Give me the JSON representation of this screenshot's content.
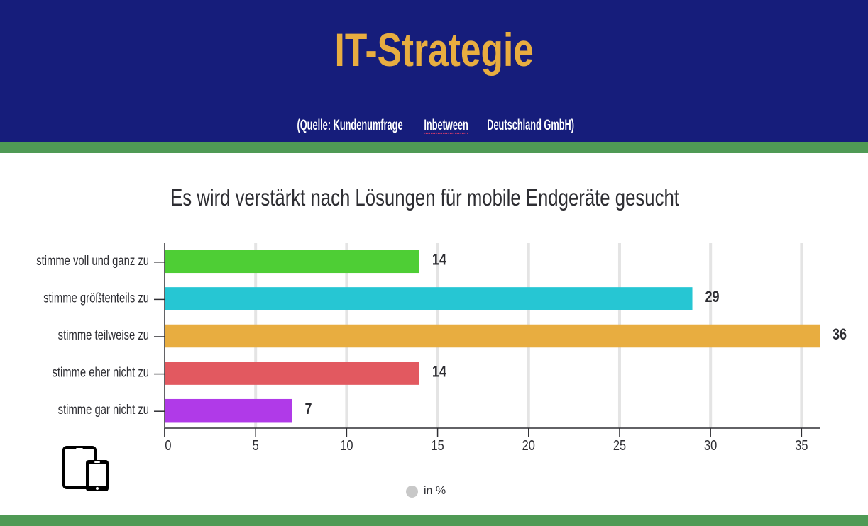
{
  "header": {
    "title": "IT-Strategie",
    "subtitle_pre": "(Quelle: Kundenumfrage ",
    "subtitle_mid": "Inbetween",
    "subtitle_post": " Deutschland GmbH)"
  },
  "colors": {
    "header_bg": "#161d7b",
    "title": "#e8ad40",
    "band": "#4f9a55"
  },
  "icon": "tablet-and-phone-icon",
  "chart_data": {
    "type": "bar",
    "orientation": "horizontal",
    "title": "Es wird verstärkt nach Lösungen für mobile Endgeräte gesucht",
    "xlabel": "",
    "ylabel": "",
    "categories": [
      "stimme voll und ganz zu",
      "stimme größtenteils zu",
      "stimme teilweise zu",
      "stimme eher nicht zu",
      "stimme gar nicht zu"
    ],
    "values": [
      14,
      29,
      36,
      14,
      7
    ],
    "value_labels": [
      "14",
      "29",
      "36",
      "14",
      "7"
    ],
    "bar_colors": [
      "#4ece35",
      "#26c6d3",
      "#e8ad40",
      "#e25960",
      "#b03ae8"
    ],
    "xlim": [
      0,
      36
    ],
    "xticks": [
      0,
      5,
      10,
      15,
      20,
      25,
      30,
      35
    ],
    "xtick_labels": [
      "0",
      "5",
      "10",
      "15",
      "20",
      "25",
      "30",
      "35"
    ],
    "grid": true,
    "legend": {
      "entries": [
        "in %"
      ],
      "colors": [
        "#c8c8c8"
      ],
      "placement": "bottom"
    }
  }
}
